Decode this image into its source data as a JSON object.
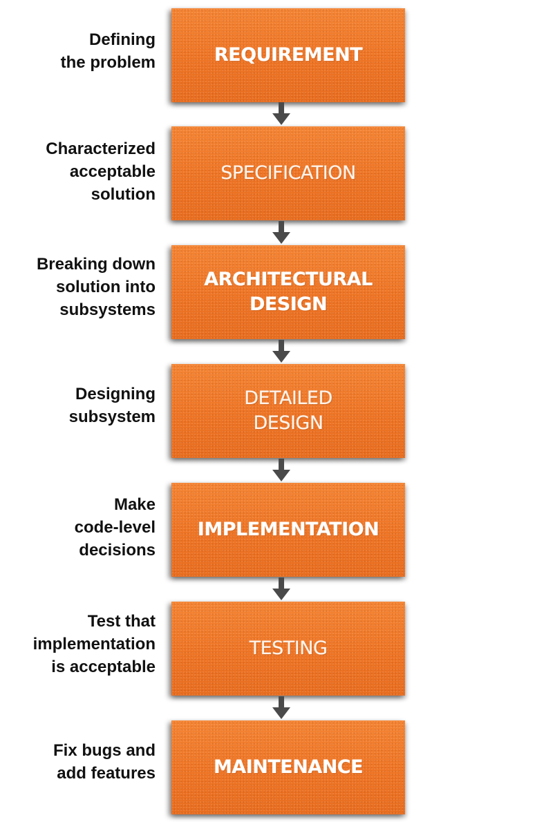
{
  "steps": [
    {
      "label": "REQUIREMENT",
      "description": "Defining\nthe problem",
      "weight": "bold"
    },
    {
      "label": "SPECIFICATION",
      "description": "Characterized\nacceptable\nsolution",
      "weight": "light"
    },
    {
      "label": "ARCHITECTURAL\nDESIGN",
      "description": "Breaking down\nsolution into\nsubsystems",
      "weight": "bold"
    },
    {
      "label": "DETAILED\nDESIGN",
      "description": "Designing\nsubsystem",
      "weight": "light"
    },
    {
      "label": "IMPLEMENTATION",
      "description": "Make\ncode-level\ndecisions",
      "weight": "bold"
    },
    {
      "label": "TESTING",
      "description": "Test that\nimplementation\nis acceptable",
      "weight": "light"
    },
    {
      "label": "MAINTENANCE",
      "description": "Fix bugs and\nadd features",
      "weight": "bold"
    }
  ],
  "colors": {
    "box": "#f07a2a",
    "box_text": "#ffffff",
    "arrow": "#4a4a4a",
    "description_text": "#111111"
  }
}
